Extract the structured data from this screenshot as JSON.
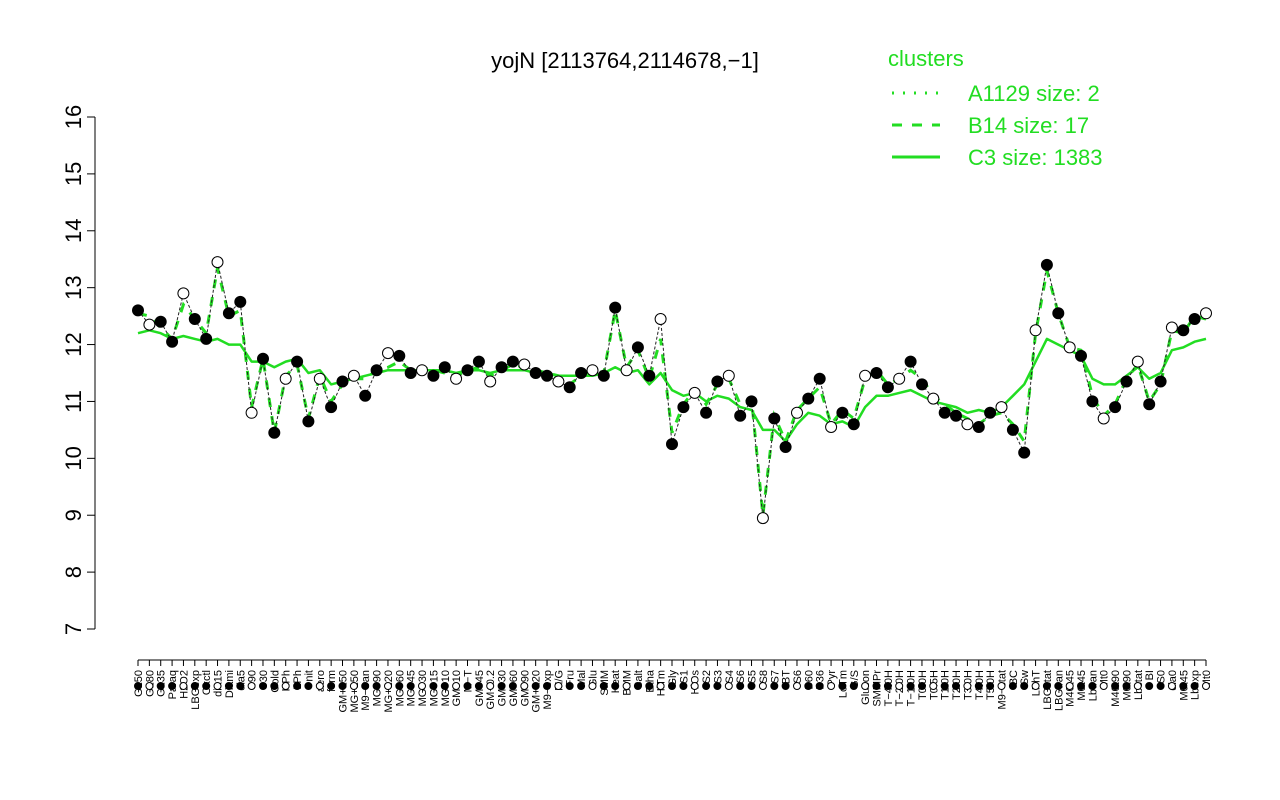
{
  "chart_data": {
    "type": "line",
    "title": "yojN [2113764,2114678,−1]",
    "xlabel": "",
    "ylabel": "",
    "ylim": [
      7,
      16
    ],
    "yticks": [
      7,
      8,
      9,
      10,
      11,
      12,
      13,
      14,
      15,
      16
    ],
    "grid": false,
    "legend_position": "top-right",
    "legend": {
      "title": "clusters",
      "entries": [
        {
          "label": "A1129 size: 2",
          "style": "dotted"
        },
        {
          "label": "B14 size: 17",
          "style": "dashed"
        },
        {
          "label": "C3 size: 1383",
          "style": "solid"
        }
      ]
    },
    "x_tick_labels": [
      "G150",
      "G180",
      "G135",
      "Paraq",
      "H2O2",
      "LBGexp",
      "Oxctl",
      "dia15",
      "Diami",
      "dia5",
      "C90",
      "C30",
      "Cold",
      "HPh",
      "LPh",
      "nit",
      "aero",
      "ferm",
      "GM+150",
      "MG+150",
      "M9−tran",
      "MG+90",
      "MG+120",
      "MG+60",
      "MG+45",
      "MG+30",
      "MG+15",
      "MG+10",
      "GM+10",
      "M−T",
      "GM+45",
      "GM−0.2",
      "GM+30",
      "GM+60",
      "GM+90",
      "GM+120",
      "M9−exp",
      "M/G",
      "Fru",
      "Mal",
      "Glu",
      "SMM",
      "Heat",
      "BMM",
      "Salt",
      "Etha",
      "HiTm",
      "Gly",
      "S1",
      "HiOs",
      "S2",
      "S3",
      "S4",
      "S6",
      "S5",
      "S8",
      "S7",
      "BT",
      "S6",
      "B60",
      "B36",
      "Pyr",
      "LoTm",
      "G/S",
      "Glucon",
      "SMMPr",
      "T−4.0H",
      "T−2.0H",
      "T−1.0H",
      "T0.0H",
      "T0.5H",
      "T1.0H",
      "T2.0H",
      "T3.0H",
      "T4.0H",
      "T5.0H",
      "M9−stat",
      "BC",
      "Sw",
      "LPhT",
      "LBGstat",
      "LBGtran",
      "M40t45",
      "M0t45",
      "Lbtran",
      "Mt0",
      "M40t90",
      "M0t90",
      "Lbstat",
      "BI",
      "S0",
      "dia0",
      "M0t45",
      "Lbexp",
      "Mt0"
    ],
    "series": [
      {
        "name": "",
        "style": "dashed",
        "values": [
          12.55,
          12.5,
          12.3,
          12.1,
          12.7,
          12.45,
          12.2,
          13.35,
          12.5,
          12.6,
          10.9,
          11.75,
          10.45,
          11.45,
          11.65,
          10.7,
          11.45,
          11.0,
          11.3,
          11.4,
          11.4,
          11.55,
          11.6,
          11.7,
          11.55,
          11.6,
          11.55,
          11.5,
          11.45,
          11.55,
          11.6,
          11.45,
          11.55,
          11.65,
          11.6,
          11.55,
          11.5,
          11.45,
          11.3,
          11.45,
          11.55,
          11.5,
          12.6,
          11.6,
          11.9,
          11.4,
          12.1,
          10.45,
          10.95,
          11.2,
          10.95,
          11.3,
          11.4,
          10.95,
          11.05,
          9.0,
          10.75,
          10.3,
          10.85,
          11.05,
          11.25,
          10.6,
          10.85,
          10.7,
          11.4,
          11.55,
          11.3,
          11.4,
          11.55,
          11.4,
          11.1,
          10.95,
          10.8,
          10.7,
          10.6,
          10.75,
          10.8,
          10.6,
          10.3,
          12.2,
          13.3,
          12.55,
          11.95,
          11.9,
          11.1,
          10.75,
          10.95,
          11.4,
          11.65,
          11.0,
          11.3,
          12.25,
          12.2,
          12.5,
          12.45
        ]
      },
      {
        "name": "",
        "style": "solid",
        "values": [
          12.2,
          12.25,
          12.2,
          12.1,
          12.15,
          12.1,
          12.05,
          12.1,
          12.0,
          12.0,
          11.7,
          11.7,
          11.6,
          11.7,
          11.75,
          11.5,
          11.55,
          11.3,
          11.35,
          11.4,
          11.45,
          11.5,
          11.55,
          11.55,
          11.55,
          11.55,
          11.55,
          11.55,
          11.5,
          11.55,
          11.55,
          11.5,
          11.55,
          11.55,
          11.55,
          11.5,
          11.5,
          11.45,
          11.45,
          11.45,
          11.45,
          11.5,
          11.6,
          11.5,
          11.55,
          11.3,
          11.5,
          11.2,
          11.1,
          11.15,
          11.0,
          11.1,
          11.05,
          10.9,
          10.85,
          10.5,
          10.5,
          10.3,
          10.6,
          10.8,
          10.75,
          10.6,
          10.65,
          10.55,
          10.9,
          11.1,
          11.1,
          11.15,
          11.2,
          11.1,
          11.0,
          10.95,
          10.9,
          10.8,
          10.85,
          10.8,
          10.9,
          11.1,
          11.3,
          11.7,
          12.1,
          12.0,
          11.9,
          11.8,
          11.4,
          11.3,
          11.3,
          11.45,
          11.6,
          11.4,
          11.5,
          11.9,
          11.95,
          12.05,
          12.1
        ]
      },
      {
        "name": "",
        "style": "points",
        "values": [
          12.6,
          12.35,
          12.4,
          12.05,
          12.9,
          12.45,
          12.1,
          13.45,
          12.55,
          12.75,
          10.8,
          11.75,
          10.45,
          11.4,
          11.7,
          10.65,
          11.4,
          10.9,
          11.35,
          11.45,
          11.1,
          11.55,
          11.85,
          11.8,
          11.5,
          11.55,
          11.45,
          11.6,
          11.4,
          11.55,
          11.7,
          11.35,
          11.6,
          11.7,
          11.65,
          11.5,
          11.45,
          11.35,
          11.25,
          11.5,
          11.55,
          11.45,
          12.65,
          11.55,
          11.95,
          11.45,
          12.45,
          10.25,
          10.9,
          11.15,
          10.8,
          11.35,
          11.45,
          10.75,
          11.0,
          8.95,
          10.7,
          10.2,
          10.8,
          11.05,
          11.4,
          10.55,
          10.8,
          10.6,
          11.45,
          11.5,
          11.25,
          11.4,
          11.7,
          11.3,
          11.05,
          10.8,
          10.75,
          10.6,
          10.55,
          10.8,
          10.9,
          10.5,
          10.1,
          12.25,
          13.4,
          12.55,
          11.95,
          11.8,
          11.0,
          10.7,
          10.9,
          11.35,
          11.7,
          10.95,
          11.35,
          12.3,
          12.25,
          12.45,
          12.55
        ]
      }
    ]
  }
}
